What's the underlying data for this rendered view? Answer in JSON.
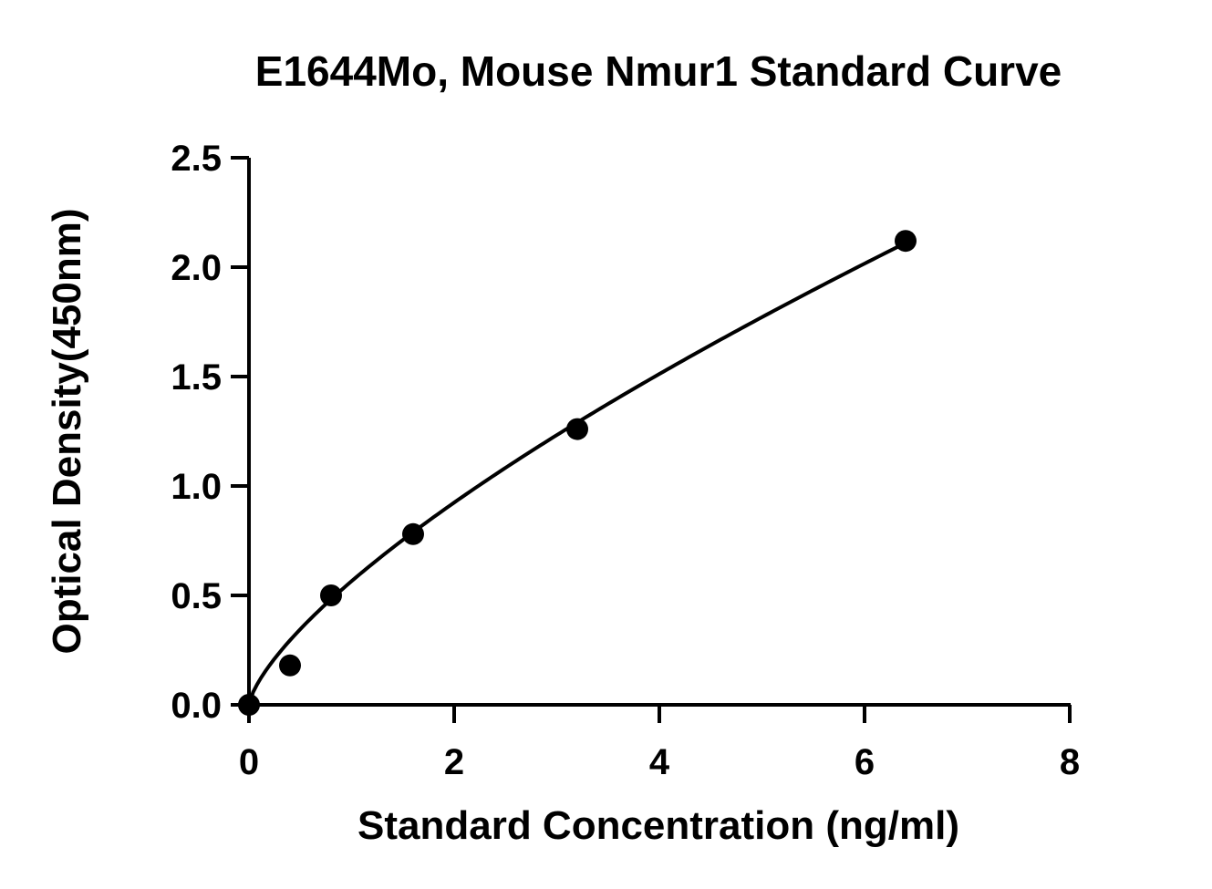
{
  "chart_data": {
    "type": "scatter",
    "title": "E1644Mo, Mouse Nmur1 Standard Curve",
    "xlabel": "Standard Concentration (ng/ml)",
    "ylabel": "Optical Density(450nm)",
    "xlim": [
      0,
      8
    ],
    "ylim": [
      0,
      2.5
    ],
    "x_ticks": [
      0,
      2,
      4,
      6,
      8
    ],
    "x_tick_labels": [
      "0",
      "2",
      "4",
      "6",
      "8"
    ],
    "y_ticks": [
      0,
      0.5,
      1.0,
      1.5,
      2.0,
      2.5
    ],
    "y_tick_labels": [
      "0.0",
      "0.5",
      "1.0",
      "1.5",
      "2.0",
      "2.5"
    ],
    "grid": false,
    "points": {
      "x": [
        0,
        0.4,
        0.8,
        1.6,
        3.2,
        6.4
      ],
      "y": [
        0.0,
        0.18,
        0.5,
        0.78,
        1.26,
        2.12
      ]
    },
    "fit_curve": {
      "type": "power",
      "a": 0.565,
      "b": 0.71,
      "x_range": [
        0,
        6.4
      ]
    },
    "colors": {
      "points": "#000000",
      "curve": "#000000",
      "axes": "#000000"
    }
  }
}
